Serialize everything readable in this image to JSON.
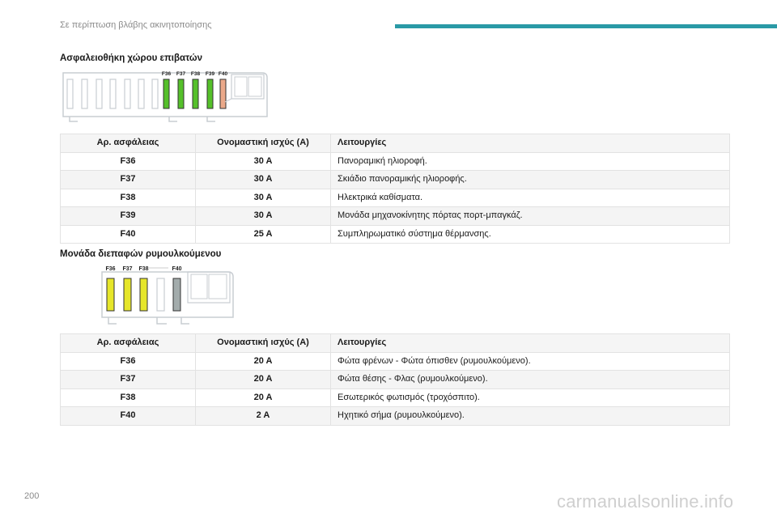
{
  "header": {
    "title": "Σε περίπτωση βλάβης ακινητοποίησης",
    "accent_color": "#2a9aa6"
  },
  "section1": {
    "heading": "Ασφαλειοθήκη χώρου επιβατών",
    "diagram": {
      "labels": [
        "F36",
        "F37",
        "F38",
        "F39",
        "F40"
      ],
      "fuse_colors": [
        "#55c02a",
        "#55c02a",
        "#55c02a",
        "#55c02a",
        "#eba98a"
      ]
    },
    "table": {
      "headers": [
        "Αρ. ασφάλειας",
        "Ονομαστική ισχύς (A)",
        "Λειτουργίες"
      ],
      "rows": [
        [
          "F36",
          "30 A",
          "Πανοραμική ηλιοροφή."
        ],
        [
          "F37",
          "30 A",
          "Σκιάδιο πανοραμικής ηλιοροφής."
        ],
        [
          "F38",
          "30 A",
          "Ηλεκτρικά καθίσματα."
        ],
        [
          "F39",
          "30 A",
          "Μονάδα μηχανοκίνητης πόρτας πορτ-μπαγκάζ."
        ],
        [
          "F40",
          "25 A",
          "Συμπληρωματικό σύστημα θέρμανσης."
        ]
      ]
    }
  },
  "section2": {
    "heading": "Μονάδα διεπαφών ρυμουλκούμενου",
    "diagram": {
      "labels": [
        "F36",
        "F37",
        "F38",
        "F40"
      ],
      "fuse_colors": [
        "#e6e62a",
        "#e6e62a",
        "#e6e62a",
        "#a3acac"
      ]
    },
    "table": {
      "headers": [
        "Αρ. ασφάλειας",
        "Ονομαστική ισχύς (A)",
        "Λειτουργίες"
      ],
      "rows": [
        [
          "F36",
          "20 A",
          "Φώτα φρένων - Φώτα όπισθεν (ρυμουλκούμενο)."
        ],
        [
          "F37",
          "20 A",
          "Φώτα θέσης - Φλας (ρυμουλκούμενο)."
        ],
        [
          "F38",
          "20 A",
          "Εσωτερικός φωτισμός (τροχόσπιτο)."
        ],
        [
          "F40",
          "2 A",
          "Ηχητικό σήμα (ρυμουλκούμενο)."
        ]
      ]
    }
  },
  "footer": {
    "page_number": "200",
    "watermark": "carmanualsonline.info"
  }
}
